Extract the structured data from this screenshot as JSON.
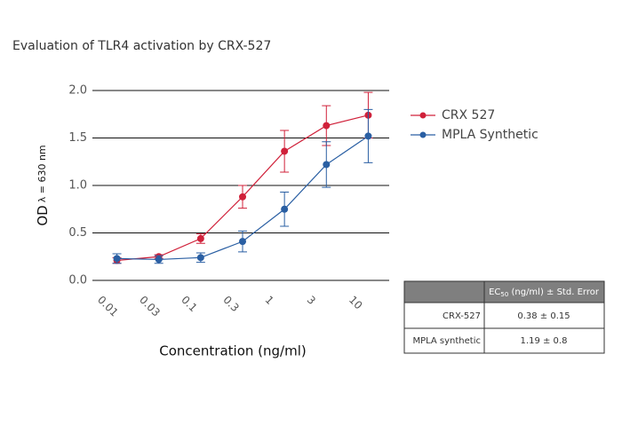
{
  "chart_data": {
    "type": "line",
    "title": "Evaluation of TLR4 activation by CRX-527",
    "xlabel": "Concentration (ng/ml)",
    "ylabel": "OD",
    "ylabel_sub": "λ = 630 nm",
    "categories": [
      "0.01",
      "0.03",
      "0.1",
      "0.3",
      "1",
      "3",
      "10"
    ],
    "series": [
      {
        "name": "CRX 527",
        "color": "#d0213a",
        "values": [
          0.21,
          0.25,
          0.44,
          0.88,
          1.36,
          1.63,
          1.74
        ],
        "errors": [
          0.03,
          0.02,
          0.05,
          0.12,
          0.22,
          0.21,
          0.24
        ]
      },
      {
        "name": "MPLA Synthetic",
        "color": "#2a5fa3",
        "values": [
          0.23,
          0.22,
          0.24,
          0.41,
          0.75,
          1.22,
          1.52
        ],
        "errors": [
          0.05,
          0.04,
          0.05,
          0.11,
          0.18,
          0.24,
          0.28
        ]
      }
    ],
    "ylim": [
      0,
      2
    ],
    "yticks": [
      {
        "value": 0,
        "label": "0.0"
      },
      0.5,
      {
        "value": 1,
        "label": "1.0"
      },
      1.5,
      {
        "value": 2,
        "label": "2.0"
      }
    ],
    "grid": true,
    "legend": "right"
  },
  "table": {
    "header": [
      "EC",
      "50",
      " (ng/ml) ± Std. Error"
    ],
    "rows": [
      [
        "CRX-527",
        "0.38 ± 0.15"
      ],
      [
        "MPLA synthetic",
        "1.19 ± 0.8"
      ]
    ]
  }
}
